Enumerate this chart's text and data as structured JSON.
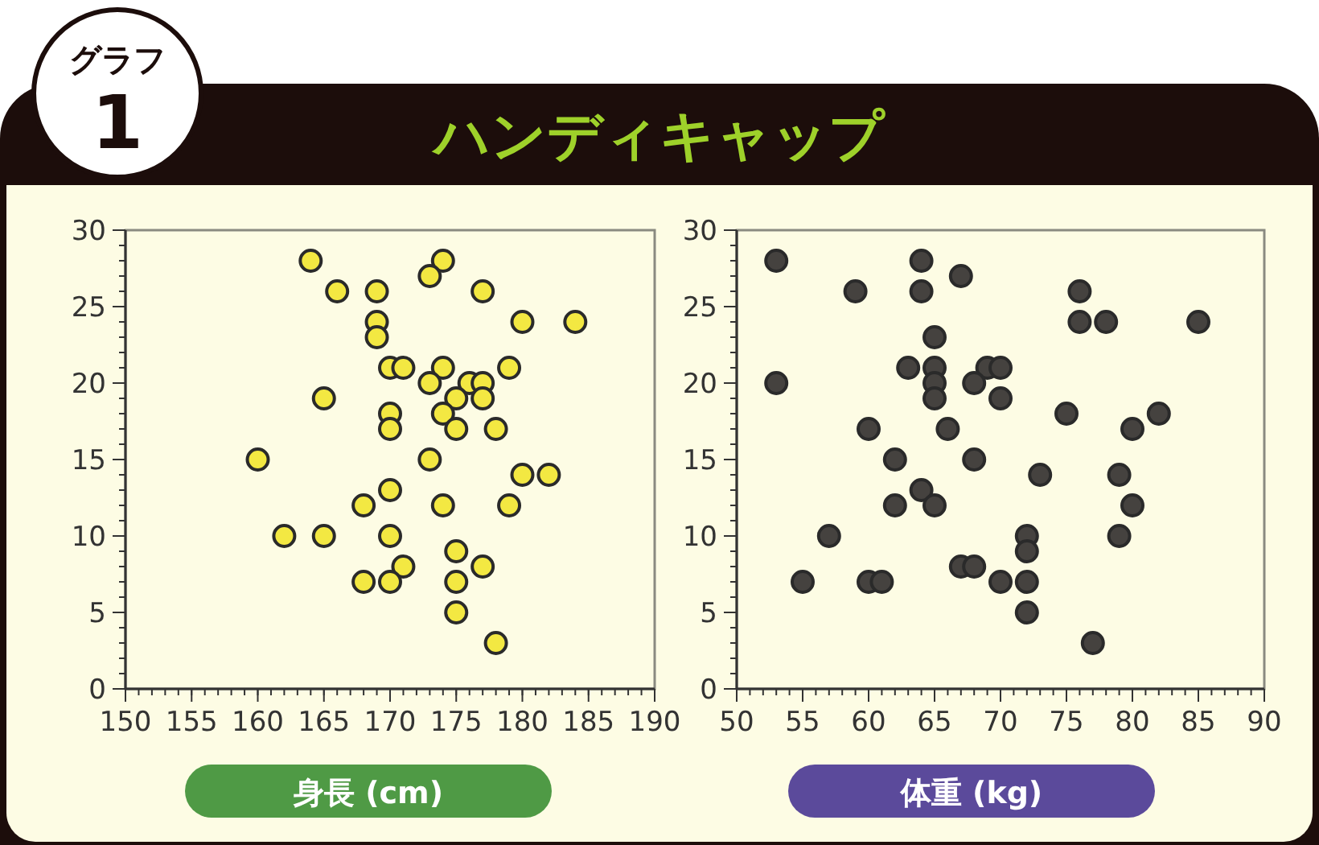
{
  "chart_data": [
    {
      "type": "scatter",
      "title": "ハンディキャップ",
      "annotations": [
        "グラフ",
        "1"
      ],
      "xlabel": "身長 (cm)",
      "xlim": [
        150,
        190
      ],
      "xticks": [
        150,
        155,
        160,
        165,
        170,
        175,
        180,
        185,
        190
      ],
      "ylim": [
        0,
        30
      ],
      "yticks": [
        0,
        5,
        10,
        15,
        20,
        25,
        30
      ],
      "grid": false,
      "marker": "circle",
      "series": [
        {
          "color": "#f3e842",
          "x": [
            164,
            174,
            173,
            166,
            169,
            177,
            169,
            180,
            184,
            169,
            170,
            171,
            174,
            179,
            173,
            176,
            177,
            165,
            175,
            177,
            170,
            174,
            170,
            175,
            178,
            160,
            173,
            180,
            182,
            170,
            168,
            174,
            179,
            162,
            165,
            170,
            175,
            171,
            177,
            168,
            170,
            175,
            175,
            178
          ],
          "values": [
            28,
            28,
            27,
            26,
            26,
            26,
            24,
            24,
            24,
            23,
            21,
            21,
            21,
            21,
            20,
            20,
            20,
            19,
            19,
            19,
            18,
            18,
            17,
            17,
            17,
            15,
            15,
            14,
            14,
            13,
            12,
            12,
            12,
            10,
            10,
            10,
            9,
            8,
            8,
            7,
            7,
            7,
            5,
            3
          ]
        }
      ]
    },
    {
      "type": "scatter",
      "xlabel": "体重 (kg)",
      "xlim": [
        50,
        90
      ],
      "xticks": [
        50,
        55,
        60,
        65,
        70,
        75,
        80,
        85,
        90
      ],
      "ylim": [
        0,
        30
      ],
      "yticks": [
        0,
        5,
        10,
        15,
        20,
        25,
        30
      ],
      "grid": false,
      "marker": "circle",
      "series": [
        {
          "color": "#45423f",
          "x": [
            53,
            64,
            67,
            59,
            64,
            76,
            76,
            78,
            85,
            65,
            63,
            65,
            69,
            70,
            53,
            65,
            68,
            65,
            70,
            75,
            82,
            60,
            66,
            80,
            62,
            68,
            73,
            79,
            64,
            62,
            65,
            80,
            57,
            72,
            79,
            72,
            67,
            68,
            55,
            60,
            61,
            70,
            72,
            72,
            77
          ],
          "values": [
            28,
            28,
            27,
            26,
            26,
            26,
            24,
            24,
            24,
            23,
            21,
            21,
            21,
            21,
            20,
            20,
            20,
            19,
            19,
            18,
            18,
            17,
            17,
            17,
            15,
            15,
            14,
            14,
            13,
            12,
            12,
            12,
            10,
            10,
            10,
            9,
            8,
            8,
            7,
            7,
            7,
            7,
            7,
            5,
            3
          ]
        }
      ]
    }
  ]
}
